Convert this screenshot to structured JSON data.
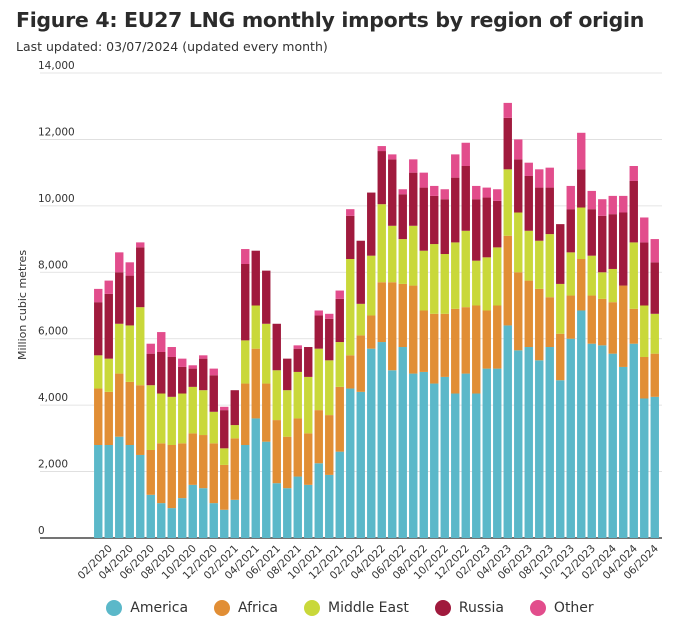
{
  "chart_data": {
    "type": "bar",
    "stacked": true,
    "title": "Figure 4: EU27 LNG monthly imports by region of origin",
    "subtitle": "Last updated: 03/07/2024 (updated every month)",
    "xlabel": "",
    "ylabel": "Million cubic metres",
    "ylim": [
      0,
      14000
    ],
    "yticks": [
      0,
      2000,
      4000,
      6000,
      8000,
      10000,
      12000,
      14000
    ],
    "ytick_labels": [
      "0",
      "2,000",
      "4,000",
      "6,000",
      "8,000",
      "10,000",
      "12,000",
      "14,000"
    ],
    "grid": true,
    "legend_position": "bottom",
    "categories": [
      "01/2020",
      "02/2020",
      "03/2020",
      "04/2020",
      "05/2020",
      "06/2020",
      "07/2020",
      "08/2020",
      "09/2020",
      "10/2020",
      "11/2020",
      "12/2020",
      "01/2021",
      "02/2021",
      "03/2021",
      "04/2021",
      "05/2021",
      "06/2021",
      "07/2021",
      "08/2021",
      "09/2021",
      "10/2021",
      "11/2021",
      "12/2021",
      "01/2022",
      "02/2022",
      "03/2022",
      "04/2022",
      "05/2022",
      "06/2022",
      "07/2022",
      "08/2022",
      "09/2022",
      "10/2022",
      "11/2022",
      "12/2022",
      "01/2023",
      "02/2023",
      "03/2023",
      "04/2023",
      "05/2023",
      "06/2023",
      "07/2023",
      "08/2023",
      "09/2023",
      "10/2023",
      "11/2023",
      "12/2023",
      "01/2024",
      "02/2024",
      "03/2024",
      "04/2024",
      "05/2024",
      "06/2024"
    ],
    "tick_labels": [
      "",
      "02/2020",
      "",
      "04/2020",
      "",
      "06/2020",
      "",
      "08/2020",
      "",
      "10/2020",
      "",
      "12/2020",
      "",
      "02/2021",
      "",
      "04/2021",
      "",
      "06/2021",
      "",
      "08/2021",
      "",
      "10/2021",
      "",
      "12/2021",
      "",
      "02/2022",
      "",
      "04/2022",
      "",
      "06/2022",
      "",
      "08/2022",
      "",
      "10/2022",
      "",
      "12/2022",
      "",
      "02/2023",
      "",
      "04/2023",
      "",
      "06/2023",
      "",
      "08/2023",
      "",
      "10/2023",
      "",
      "12/2023",
      "",
      "02/2024",
      "",
      "04/2024",
      "",
      "06/2024"
    ],
    "series": [
      {
        "name": "America",
        "color": "#5bb8c9",
        "values": [
          2800,
          2800,
          3050,
          2800,
          2500,
          1300,
          1050,
          900,
          1200,
          1600,
          1500,
          1050,
          850,
          1150,
          2800,
          3600,
          2900,
          1650,
          1500,
          1850,
          1600,
          2250,
          1900,
          2600,
          4500,
          4400,
          5700,
          5900,
          5050,
          5750,
          4950,
          5000,
          4650,
          4850,
          4350,
          4950,
          4350,
          5100,
          5100,
          6400,
          5650,
          5750,
          5350,
          5750,
          4750,
          6000,
          6850,
          5850,
          5800,
          5550,
          5150,
          5850,
          4200,
          4250
        ]
      },
      {
        "name": "Africa",
        "color": "#e18e35",
        "values": [
          1700,
          1600,
          1900,
          1900,
          2100,
          1350,
          1800,
          1900,
          1650,
          1550,
          1600,
          1800,
          1350,
          1850,
          1850,
          2100,
          1750,
          1900,
          1550,
          1750,
          1550,
          1600,
          1800,
          1950,
          1000,
          1700,
          1000,
          1800,
          2650,
          1900,
          2650,
          1850,
          2100,
          1900,
          2550,
          2000,
          2650,
          1750,
          1900,
          2700,
          2350,
          2000,
          2150,
          1500,
          1400,
          1300,
          1550,
          1450,
          1400,
          1550,
          2450,
          1050,
          1250,
          1300
        ]
      },
      {
        "name": "Middle East",
        "color": "#c9d83a",
        "values": [
          1000,
          1000,
          1500,
          1700,
          2350,
          1950,
          1500,
          1450,
          1500,
          1400,
          1350,
          950,
          500,
          400,
          1300,
          1300,
          1800,
          1500,
          1400,
          1400,
          1700,
          1850,
          1650,
          1350,
          2900,
          950,
          1800,
          2350,
          1700,
          1350,
          1800,
          1800,
          2100,
          1800,
          2000,
          2300,
          1350,
          1600,
          1750,
          2000,
          1800,
          1500,
          1450,
          1900,
          1500,
          1300,
          1550,
          1200,
          800,
          1000,
          0,
          2000,
          1550,
          1200
        ]
      },
      {
        "name": "Russia",
        "color": "#a01a3d",
        "values": [
          1600,
          1950,
          1550,
          1500,
          1800,
          950,
          1250,
          1200,
          800,
          550,
          950,
          1100,
          1150,
          1050,
          2300,
          1650,
          1600,
          1400,
          950,
          700,
          900,
          1000,
          1250,
          1300,
          1300,
          1900,
          1900,
          1600,
          2000,
          1350,
          1600,
          1900,
          1450,
          1650,
          1950,
          1950,
          1850,
          1800,
          1400,
          1550,
          1600,
          1650,
          1600,
          1400,
          1800,
          1300,
          1150,
          1400,
          1700,
          1650,
          2200,
          1850,
          1900,
          1550
        ]
      },
      {
        "name": "Other",
        "color": "#e24d8c",
        "values": [
          400,
          400,
          600,
          400,
          150,
          300,
          600,
          300,
          250,
          100,
          100,
          200,
          100,
          0,
          450,
          0,
          0,
          0,
          0,
          100,
          0,
          150,
          150,
          250,
          200,
          0,
          0,
          150,
          150,
          150,
          400,
          450,
          300,
          300,
          700,
          700,
          400,
          300,
          350,
          450,
          600,
          400,
          550,
          600,
          0,
          700,
          1100,
          550,
          500,
          550,
          500,
          450,
          750,
          700
        ]
      }
    ]
  }
}
